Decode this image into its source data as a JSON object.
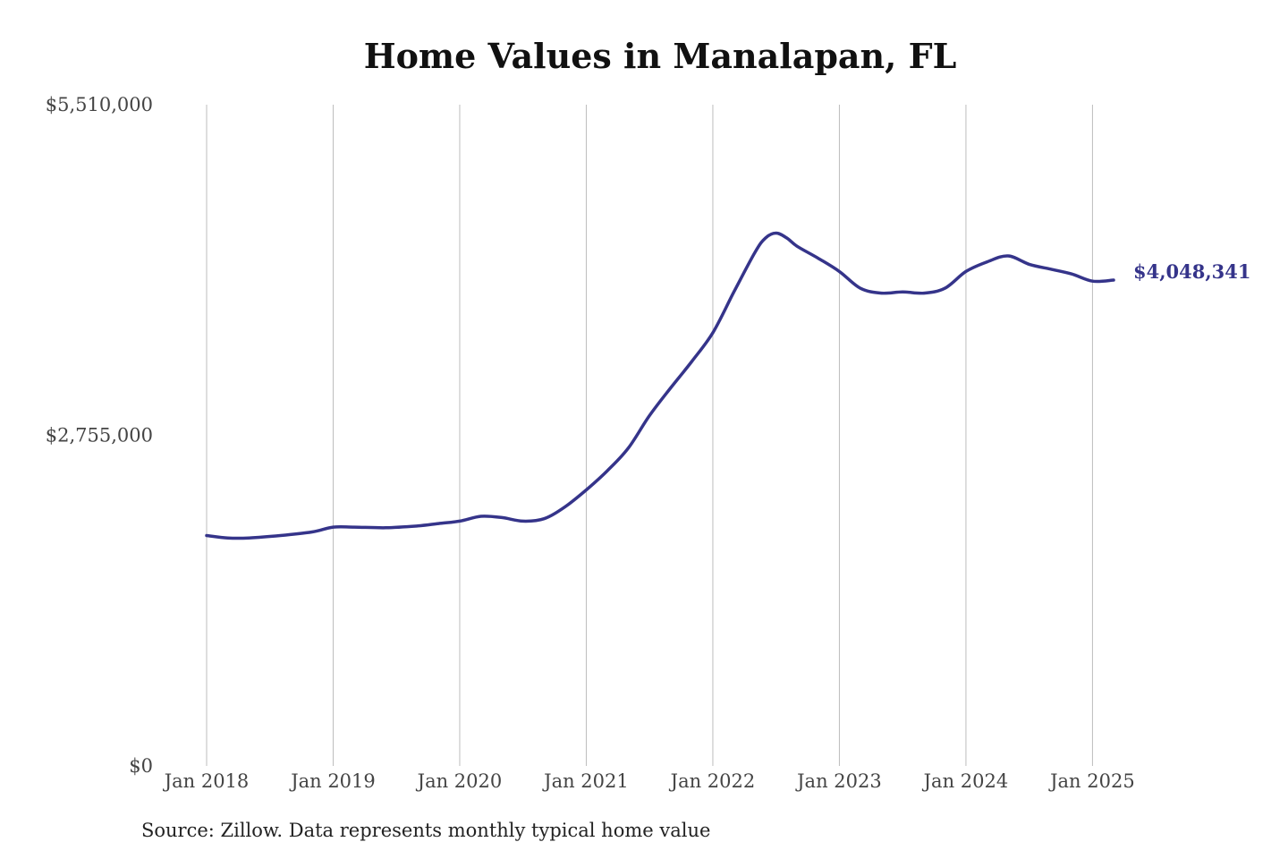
{
  "chart_data": {
    "type": "line",
    "title": "Home Values in Manalapan, FL",
    "source": "Source: Zillow. Data represents monthly typical home value",
    "ylim": [
      0,
      5510000
    ],
    "y_ticks": [
      "$5,510,000",
      "$2,755,000",
      "$0"
    ],
    "y_tick_values": [
      5510000,
      2755000,
      0
    ],
    "x_ticks": [
      "Jan 2018",
      "Jan 2019",
      "Jan 2020",
      "Jan 2021",
      "Jan 2022",
      "Jan 2023",
      "Jan 2024",
      "Jan 2025"
    ],
    "x_tick_values": [
      "2018-01",
      "2019-01",
      "2020-01",
      "2021-01",
      "2022-01",
      "2023-01",
      "2024-01",
      "2025-01"
    ],
    "xlim": [
      "2018-01",
      "2025-03"
    ],
    "grid": "vertical",
    "line_color": "#35348a",
    "end_label": "$4,048,341",
    "series": [
      {
        "x": [
          "2018-01",
          "2018-03",
          "2018-05",
          "2018-08",
          "2018-11",
          "2019-01",
          "2019-03",
          "2019-06",
          "2019-09",
          "2019-11",
          "2020-01",
          "2020-03",
          "2020-05",
          "2020-07",
          "2020-09",
          "2020-11",
          "2021-01",
          "2021-03",
          "2021-05",
          "2021-07",
          "2021-09",
          "2021-11",
          "2022-01",
          "2022-03",
          "2022-05",
          "2022-06",
          "2022-07",
          "2022-08",
          "2022-09",
          "2022-11",
          "2023-01",
          "2023-03",
          "2023-05",
          "2023-07",
          "2023-09",
          "2023-11",
          "2024-01",
          "2024-03",
          "2024-05",
          "2024-07",
          "2024-09",
          "2024-11",
          "2025-01",
          "2025-03"
        ],
        "values": [
          1920000,
          1900000,
          1900000,
          1920000,
          1950000,
          1990000,
          1990000,
          1985000,
          2000000,
          2020000,
          2040000,
          2080000,
          2070000,
          2040000,
          2060000,
          2160000,
          2300000,
          2460000,
          2650000,
          2920000,
          3150000,
          3370000,
          3610000,
          3950000,
          4280000,
          4400000,
          4440000,
          4400000,
          4330000,
          4230000,
          4120000,
          3980000,
          3940000,
          3950000,
          3940000,
          3980000,
          4120000,
          4200000,
          4250000,
          4180000,
          4140000,
          4100000,
          4040000,
          4048341
        ]
      }
    ]
  }
}
